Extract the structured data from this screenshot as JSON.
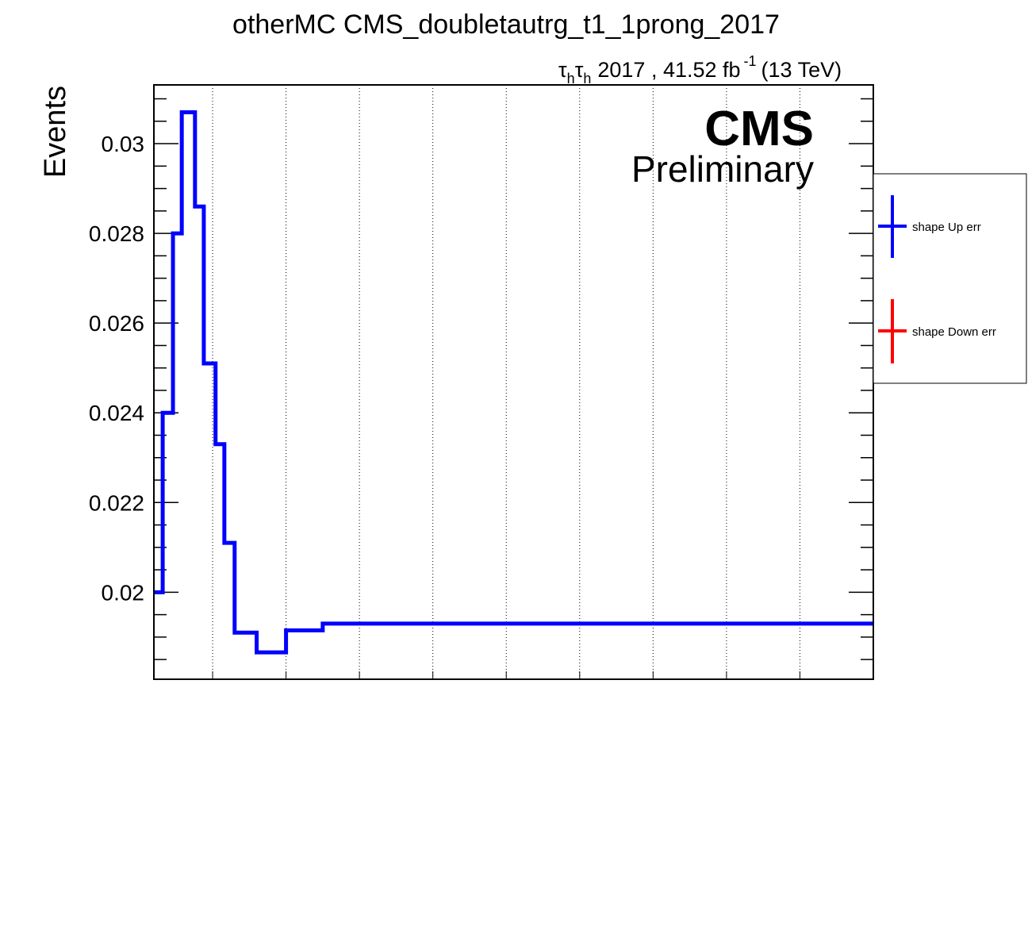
{
  "chart_data": {
    "type": "line",
    "title": "otherMC CMS_doubletautrg_t1_1prong_2017",
    "lumi": {
      "channel_symbol": "τ",
      "channel_sub": "h",
      "text": "2017 , 41.52 fb",
      "exponent": "-1",
      "energy": "(13 TeV)"
    },
    "cms_label": "CMS",
    "preliminary_label": "Preliminary",
    "ylabel": "Events",
    "xlabel": "",
    "ylim": [
      0.01806,
      0.03131
    ],
    "xlim": [
      0,
      49
    ],
    "grid_x": [
      4,
      9,
      14,
      19,
      24,
      29,
      34,
      39,
      44
    ],
    "yticks": [
      {
        "value": 0.02,
        "label": "0.02"
      },
      {
        "value": 0.022,
        "label": "0.022"
      },
      {
        "value": 0.024,
        "label": "0.024"
      },
      {
        "value": 0.026,
        "label": "0.026"
      },
      {
        "value": 0.028,
        "label": "0.028"
      },
      {
        "value": 0.03,
        "label": "0.03"
      }
    ],
    "series": [
      {
        "name": "shape Up err",
        "color": "#0000ff",
        "bin_edges": [
          0,
          0.6,
          1.3,
          1.9,
          2.8,
          3.4,
          4.2,
          4.8,
          5.5,
          7.0,
          9.0,
          11.5,
          49
        ],
        "values": [
          0.02,
          0.024,
          0.028,
          0.0307,
          0.0286,
          0.0251,
          0.0233,
          0.0211,
          0.0191,
          0.01866,
          0.01915,
          0.0193
        ]
      },
      {
        "name": "shape Down err",
        "color": "#ff0000",
        "bin_edges": [],
        "values": []
      }
    ],
    "legend_position": "right"
  }
}
